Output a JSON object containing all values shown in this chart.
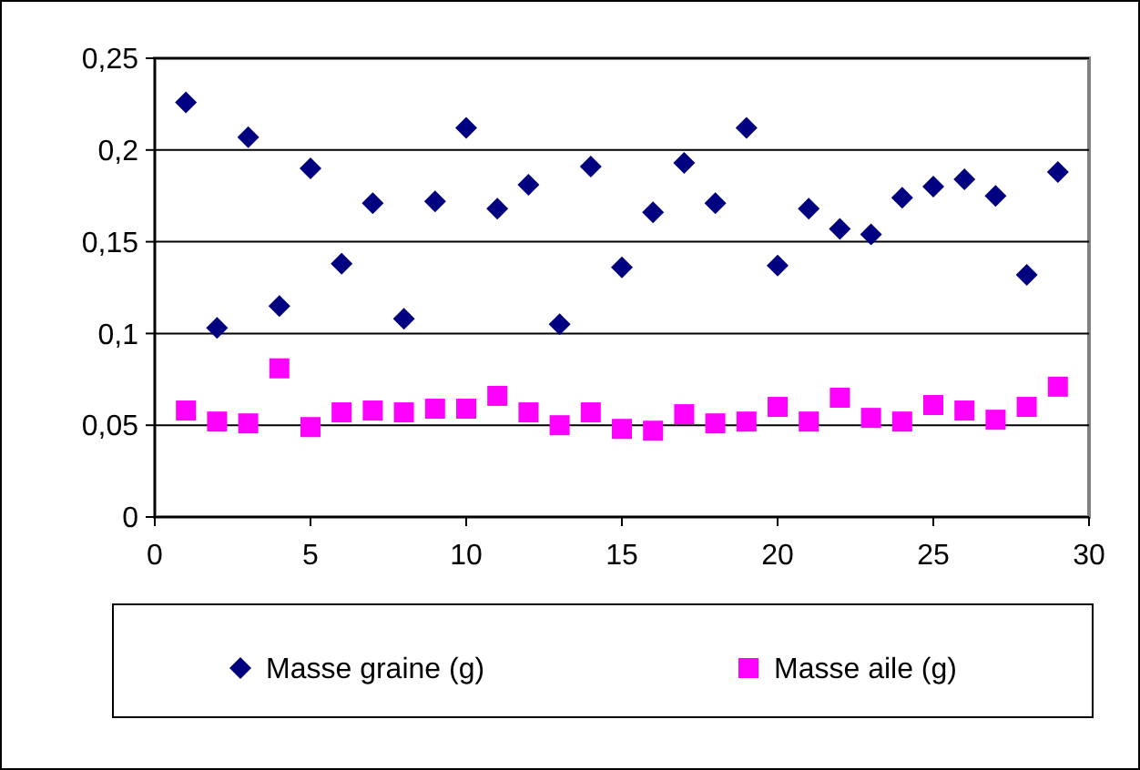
{
  "chart_data": {
    "type": "scatter",
    "x": [
      1,
      2,
      3,
      4,
      5,
      6,
      7,
      8,
      9,
      10,
      11,
      12,
      13,
      14,
      15,
      16,
      17,
      18,
      19,
      20,
      21,
      22,
      23,
      24,
      25,
      26,
      27,
      28,
      29
    ],
    "series": [
      {
        "name": "Masse graine (g)",
        "color": "#000080",
        "marker": "diamond",
        "values": [
          0.226,
          0.103,
          0.207,
          0.115,
          0.19,
          0.138,
          0.171,
          0.108,
          0.172,
          0.212,
          0.168,
          0.181,
          0.105,
          0.191,
          0.136,
          0.166,
          0.193,
          0.171,
          0.212,
          0.137,
          0.168,
          0.157,
          0.154,
          0.174,
          0.18,
          0.184,
          0.175,
          0.132,
          0.188
        ]
      },
      {
        "name": "Masse aile (g)",
        "color": "#ff00ff",
        "marker": "square",
        "values": [
          0.058,
          0.052,
          0.051,
          0.081,
          0.049,
          0.057,
          0.058,
          0.057,
          0.059,
          0.059,
          0.066,
          0.057,
          0.05,
          0.057,
          0.048,
          0.047,
          0.056,
          0.051,
          0.052,
          0.06,
          0.052,
          0.065,
          0.054,
          0.052,
          0.061,
          0.058,
          0.053,
          0.06,
          0.071
        ]
      }
    ],
    "xlim": [
      0,
      30
    ],
    "xticks": [
      0,
      5,
      10,
      15,
      20,
      25,
      30
    ],
    "ylim": [
      0,
      0.25
    ],
    "yticks": [
      0,
      {
        "value": 0.05,
        "label": "0,05"
      },
      {
        "value": 0.1,
        "label": "0,1"
      },
      {
        "value": 0.15,
        "label": "0,15"
      },
      {
        "value": 0.2,
        "label": "0,2"
      },
      {
        "value": 0.25,
        "label": "0,25"
      }
    ],
    "grid": "y",
    "legend": "bottom"
  }
}
